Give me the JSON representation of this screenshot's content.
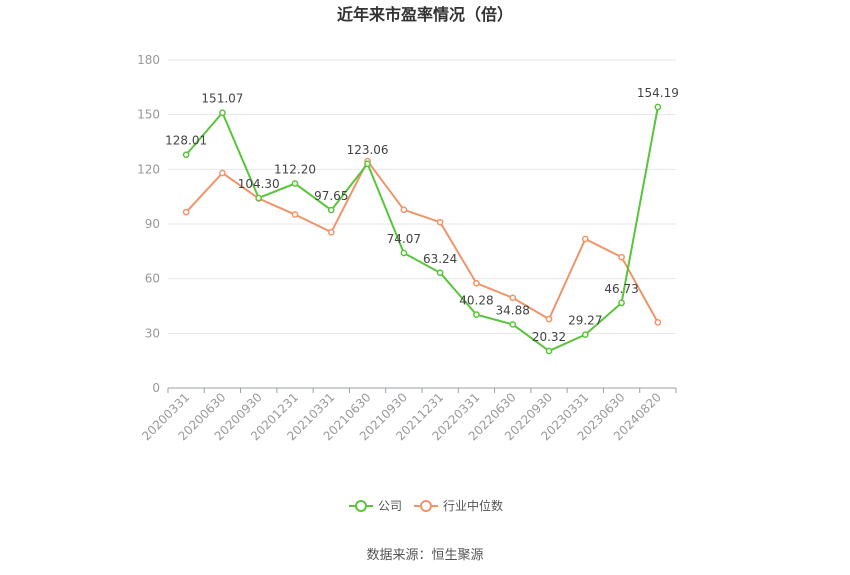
{
  "chart_data": {
    "type": "line",
    "title": "近年来市盈率情况（倍）",
    "categories": [
      "20200331",
      "20200630",
      "20200930",
      "20201231",
      "20210331",
      "20210630",
      "20210930",
      "20211231",
      "20220331",
      "20220630",
      "20220930",
      "20230331",
      "20230630",
      "20240820"
    ],
    "series": [
      {
        "name": "公司",
        "color": "#5ac43c",
        "values": [
          128.01,
          151.07,
          104.3,
          112.2,
          97.65,
          123.06,
          74.07,
          63.24,
          40.28,
          34.88,
          20.32,
          29.27,
          46.73,
          154.19
        ],
        "labels": [
          "128.01",
          "151.07",
          "104.30",
          "112.20",
          "97.65",
          "123.06",
          "74.07",
          "63.24",
          "40.28",
          "34.88",
          "20.32",
          "29.27",
          "46.73",
          "154.19"
        ]
      },
      {
        "name": "行业中位数",
        "color": "#f0946a",
        "values": [
          96.5,
          118.0,
          104.0,
          95.2,
          85.5,
          124.5,
          97.8,
          91.0,
          57.5,
          49.5,
          37.8,
          81.8,
          71.8,
          36.0
        ]
      }
    ],
    "ylim": [
      0,
      180
    ],
    "yticks": [
      0,
      30,
      60,
      90,
      120,
      150,
      180
    ],
    "grid": true,
    "legend_position": "bottom"
  },
  "source": "数据来源：恒生聚源"
}
